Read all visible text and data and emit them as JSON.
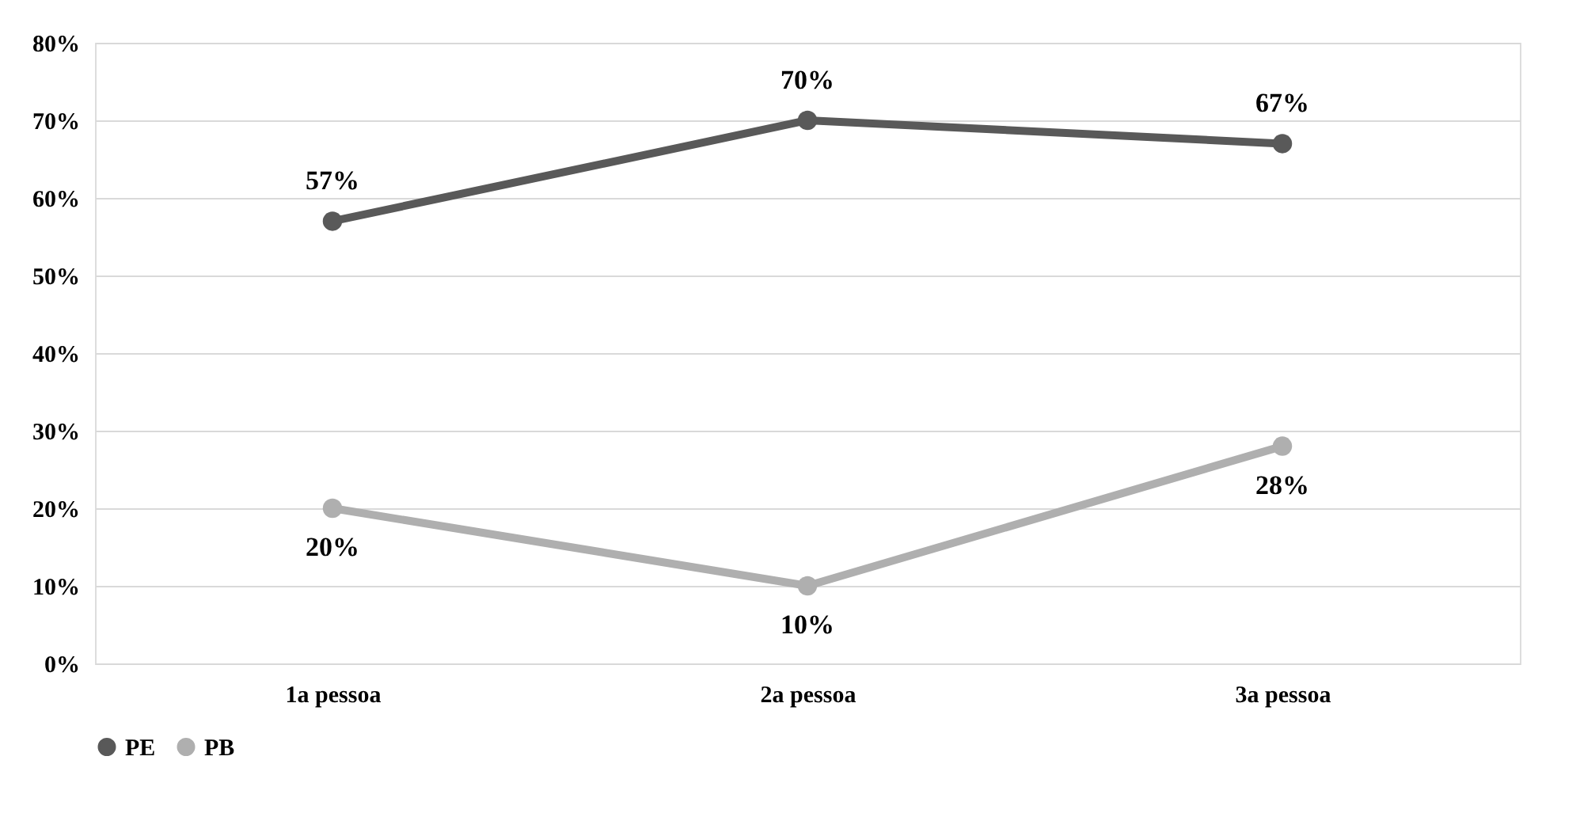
{
  "chart_data": {
    "type": "line",
    "categories": [
      "1a pessoa",
      "2a pessoa",
      "3a pessoa"
    ],
    "series": [
      {
        "name": "PE",
        "color": "#595959",
        "values": [
          57,
          70,
          67
        ],
        "value_labels": [
          "57%",
          "70%",
          "67%"
        ]
      },
      {
        "name": "PB",
        "color": "#afafaf",
        "values": [
          20,
          10,
          28
        ],
        "value_labels": [
          "20%",
          "10%",
          "28%"
        ]
      }
    ],
    "ylim": [
      0,
      80
    ],
    "yticks": [
      {
        "value": 0,
        "label": "0%"
      },
      {
        "value": 10,
        "label": "10%"
      },
      {
        "value": 20,
        "label": "20%"
      },
      {
        "value": 30,
        "label": "30%"
      },
      {
        "value": 40,
        "label": "40%"
      },
      {
        "value": 50,
        "label": "50%"
      },
      {
        "value": 60,
        "label": "60%"
      },
      {
        "value": 70,
        "label": "70%"
      },
      {
        "value": 80,
        "label": "80%"
      }
    ],
    "grid": "y",
    "legend": "bottom",
    "marker": "circle",
    "line_style": "solid"
  }
}
